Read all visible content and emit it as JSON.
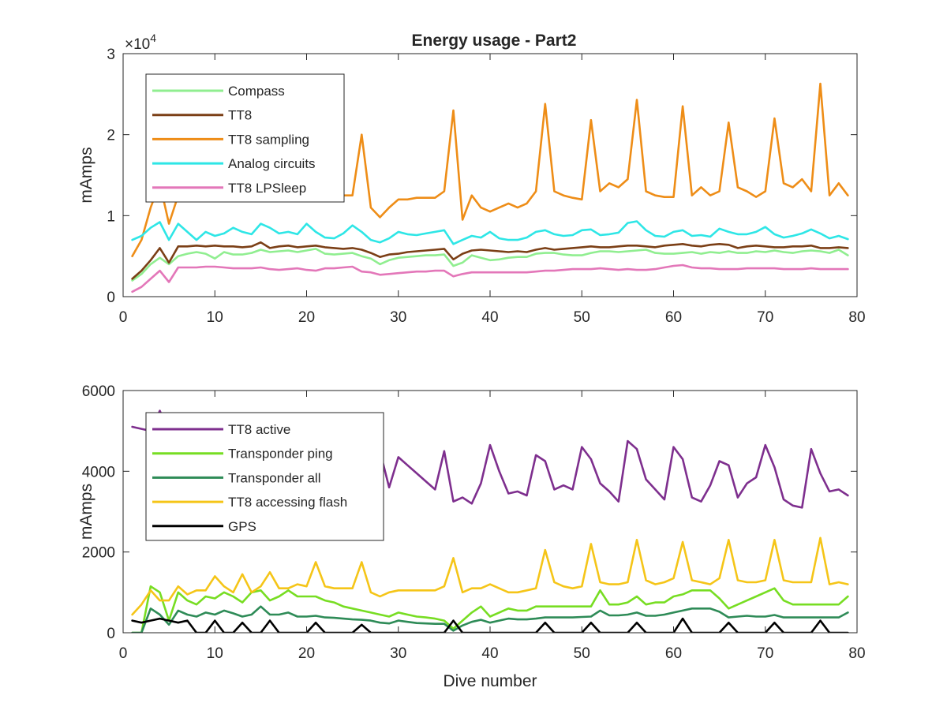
{
  "chart_data": [
    {
      "type": "line",
      "title": "Energy usage - Part2",
      "xlabel": "",
      "ylabel": "mAmps",
      "xlim": [
        0,
        80
      ],
      "ylim": [
        0,
        30000
      ],
      "x_ticks": [
        "0",
        "10",
        "20",
        "30",
        "40",
        "50",
        "60",
        "70",
        "80"
      ],
      "y_ticks": [
        "0",
        "1",
        "2",
        "3"
      ],
      "y_exponent": {
        "base": "×10",
        "power": "4"
      },
      "grid": false,
      "legend": "top-left",
      "x": [
        1,
        2,
        3,
        4,
        5,
        6,
        7,
        8,
        9,
        10,
        11,
        12,
        13,
        14,
        15,
        16,
        17,
        18,
        19,
        20,
        21,
        22,
        23,
        24,
        25,
        26,
        27,
        28,
        29,
        30,
        31,
        32,
        33,
        34,
        35,
        36,
        37,
        38,
        39,
        40,
        41,
        42,
        43,
        44,
        45,
        46,
        47,
        48,
        49,
        50,
        51,
        52,
        53,
        54,
        55,
        56,
        57,
        58,
        59,
        60,
        61,
        62,
        63,
        64,
        65,
        66,
        67,
        68,
        69,
        70,
        71,
        72,
        73,
        74,
        75,
        76,
        77,
        78,
        79
      ],
      "series": [
        {
          "name": "Compass",
          "color": "#90ee90",
          "values": [
            2000,
            2800,
            4000,
            4800,
            4000,
            5000,
            5300,
            5500,
            5300,
            4700,
            5500,
            5200,
            5200,
            5400,
            5800,
            5500,
            5600,
            5700,
            5500,
            5700,
            5900,
            5300,
            5200,
            5300,
            5400,
            5000,
            4700,
            4000,
            4500,
            4800,
            4900,
            5000,
            5100,
            5100,
            5200,
            3800,
            4200,
            5100,
            4800,
            4500,
            4600,
            4800,
            4900,
            4900,
            5300,
            5400,
            5400,
            5200,
            5100,
            5100,
            5400,
            5600,
            5600,
            5500,
            5600,
            5700,
            5800,
            5400,
            5300,
            5300,
            5400,
            5500,
            5300,
            5500,
            5400,
            5600,
            5400,
            5400,
            5600,
            5500,
            5700,
            5500,
            5400,
            5600,
            5700,
            5600,
            5400,
            5800,
            5100
          ]
        },
        {
          "name": "TT8",
          "color": "#7b3f16",
          "values": [
            2200,
            3200,
            4500,
            6000,
            4200,
            6200,
            6200,
            6300,
            6200,
            6300,
            6200,
            6200,
            6100,
            6200,
            6700,
            6000,
            6200,
            6300,
            6100,
            6200,
            6300,
            6100,
            6000,
            5900,
            6000,
            5800,
            5400,
            4900,
            5200,
            5300,
            5500,
            5600,
            5700,
            5800,
            5900,
            4600,
            5300,
            5700,
            5800,
            5700,
            5600,
            5500,
            5600,
            5500,
            5800,
            6000,
            5800,
            5900,
            6000,
            6100,
            6200,
            6100,
            6100,
            6200,
            6300,
            6300,
            6200,
            6100,
            6300,
            6400,
            6500,
            6300,
            6200,
            6400,
            6500,
            6400,
            6000,
            6200,
            6300,
            6200,
            6100,
            6100,
            6200,
            6200,
            6300,
            6000,
            6000,
            6100,
            6000
          ]
        },
        {
          "name": "TT8 sampling",
          "color": "#ee8d17",
          "values": [
            5000,
            7000,
            11000,
            14000,
            9000,
            12500,
            12500,
            12500,
            12500,
            12500,
            12500,
            12500,
            12500,
            12500,
            12500,
            12500,
            12500,
            12500,
            12500,
            12500,
            12500,
            12500,
            12500,
            12500,
            12500,
            20000,
            11000,
            9800,
            11000,
            12000,
            12000,
            12200,
            12200,
            12200,
            13000,
            23000,
            9500,
            12500,
            11000,
            10500,
            11000,
            11500,
            11000,
            11500,
            13000,
            23800,
            13000,
            12500,
            12200,
            12000,
            21800,
            13000,
            14000,
            13500,
            14500,
            24300,
            13000,
            12500,
            12300,
            12300,
            23500,
            12500,
            13500,
            12500,
            13000,
            21500,
            13500,
            13000,
            12300,
            13000,
            22000,
            14000,
            13500,
            14500,
            13000,
            26300,
            12500,
            14000,
            12500
          ]
        },
        {
          "name": "Analog circuits",
          "color": "#2ee6e6",
          "values": [
            7000,
            7500,
            8500,
            9200,
            7000,
            9000,
            8000,
            7000,
            8000,
            7500,
            7800,
            8500,
            8000,
            7700,
            9000,
            8500,
            7800,
            8000,
            7700,
            9000,
            8000,
            7300,
            7200,
            7800,
            8800,
            8000,
            7000,
            6700,
            7200,
            8000,
            7700,
            7600,
            7800,
            8000,
            8200,
            6500,
            7000,
            7500,
            7300,
            8000,
            7200,
            7000,
            7000,
            7300,
            8000,
            8200,
            7700,
            7500,
            7600,
            8200,
            8300,
            7600,
            7700,
            7900,
            9100,
            9300,
            8200,
            7500,
            7400,
            8000,
            8200,
            7500,
            7600,
            7400,
            8400,
            8000,
            7700,
            7700,
            8000,
            8600,
            7700,
            7300,
            7500,
            7800,
            8300,
            7800,
            7200,
            7500,
            7100
          ]
        },
        {
          "name": "TT8 LPSleep",
          "color": "#e377b9",
          "values": [
            600,
            1200,
            2200,
            3200,
            1800,
            3600,
            3600,
            3600,
            3700,
            3700,
            3600,
            3500,
            3500,
            3500,
            3600,
            3400,
            3300,
            3400,
            3500,
            3300,
            3200,
            3500,
            3500,
            3600,
            3700,
            3100,
            3000,
            2700,
            2800,
            2900,
            3000,
            3100,
            3100,
            3200,
            3200,
            2500,
            2800,
            3000,
            3000,
            3000,
            3000,
            3000,
            3000,
            3000,
            3100,
            3200,
            3200,
            3300,
            3400,
            3400,
            3400,
            3500,
            3400,
            3300,
            3400,
            3300,
            3300,
            3400,
            3600,
            3800,
            3900,
            3600,
            3500,
            3500,
            3400,
            3400,
            3400,
            3500,
            3500,
            3500,
            3500,
            3400,
            3400,
            3400,
            3500,
            3400,
            3400,
            3400,
            3400
          ]
        }
      ]
    },
    {
      "type": "line",
      "title": "",
      "xlabel": "Dive number",
      "ylabel": "mAmps",
      "xlim": [
        0,
        80
      ],
      "ylim": [
        0,
        6000
      ],
      "x_ticks": [
        "0",
        "10",
        "20",
        "30",
        "40",
        "50",
        "60",
        "70",
        "80"
      ],
      "y_ticks": [
        "0",
        "2000",
        "4000",
        "6000"
      ],
      "grid": false,
      "legend": "top-left",
      "x": [
        1,
        2,
        3,
        4,
        5,
        6,
        7,
        8,
        9,
        10,
        11,
        12,
        13,
        14,
        15,
        16,
        17,
        18,
        19,
        20,
        21,
        22,
        23,
        24,
        25,
        26,
        27,
        28,
        29,
        30,
        31,
        32,
        33,
        34,
        35,
        36,
        37,
        38,
        39,
        40,
        41,
        42,
        43,
        44,
        45,
        46,
        47,
        48,
        49,
        50,
        51,
        52,
        53,
        54,
        55,
        56,
        57,
        58,
        59,
        60,
        61,
        62,
        63,
        64,
        65,
        66,
        67,
        68,
        69,
        70,
        71,
        72,
        73,
        74,
        75,
        76,
        77,
        78,
        79
      ],
      "series": [
        {
          "name": "TT8 active",
          "color": "#7e2f8e",
          "values": [
            5100,
            5050,
            5000,
            5500,
            5000,
            5000,
            5000,
            5000,
            5000,
            5000,
            5000,
            5000,
            5000,
            5000,
            5000,
            5000,
            5000,
            5000,
            5000,
            5000,
            5000,
            5000,
            5000,
            5000,
            5000,
            5000,
            5000,
            4500,
            3600,
            4350,
            4150,
            3950,
            3750,
            3550,
            4500,
            3250,
            3350,
            3200,
            3700,
            4650,
            4000,
            3450,
            3500,
            3400,
            4400,
            4250,
            3550,
            3650,
            3550,
            4600,
            4300,
            3700,
            3500,
            3250,
            4750,
            4550,
            3800,
            3550,
            3300,
            4600,
            4300,
            3350,
            3250,
            3650,
            4250,
            4150,
            3350,
            3700,
            3850,
            4650,
            4100,
            3300,
            3150,
            3100,
            4550,
            3950,
            3500,
            3550,
            3400
          ]
        },
        {
          "name": "Transponder ping",
          "color": "#77dd22",
          "values": [
            0,
            0,
            1150,
            1000,
            300,
            1000,
            800,
            700,
            900,
            850,
            1000,
            900,
            750,
            1000,
            1050,
            800,
            900,
            1050,
            900,
            900,
            900,
            800,
            750,
            650,
            600,
            550,
            500,
            450,
            400,
            500,
            450,
            400,
            380,
            350,
            300,
            100,
            300,
            500,
            650,
            400,
            500,
            600,
            550,
            550,
            650,
            650,
            650,
            650,
            650,
            650,
            650,
            1050,
            700,
            700,
            750,
            900,
            700,
            750,
            750,
            900,
            950,
            1050,
            1050,
            1050,
            850,
            600,
            700,
            800,
            900,
            1000,
            1100,
            800,
            700,
            700,
            700,
            700,
            700,
            700,
            900
          ]
        },
        {
          "name": "Transponder all",
          "color": "#2e8b57",
          "values": [
            0,
            0,
            600,
            450,
            200,
            550,
            450,
            400,
            500,
            450,
            550,
            480,
            400,
            450,
            650,
            450,
            450,
            500,
            400,
            400,
            420,
            380,
            370,
            350,
            330,
            320,
            300,
            250,
            230,
            300,
            270,
            240,
            230,
            220,
            220,
            50,
            180,
            270,
            320,
            250,
            300,
            350,
            330,
            330,
            350,
            380,
            380,
            380,
            380,
            390,
            400,
            550,
            430,
            430,
            450,
            500,
            420,
            420,
            450,
            500,
            550,
            600,
            600,
            600,
            520,
            380,
            400,
            420,
            400,
            400,
            440,
            380,
            380,
            380,
            380,
            380,
            380,
            380,
            500
          ]
        },
        {
          "name": "TT8 accessing flash",
          "color": "#f5c518",
          "values": [
            450,
            700,
            1050,
            800,
            800,
            1150,
            950,
            1050,
            1050,
            1400,
            1150,
            1000,
            1450,
            1000,
            1150,
            1500,
            1100,
            1100,
            1200,
            1150,
            1750,
            1150,
            1100,
            1100,
            1100,
            1750,
            1000,
            900,
            1000,
            1050,
            1050,
            1050,
            1050,
            1050,
            1150,
            1850,
            1000,
            1100,
            1100,
            1200,
            1100,
            1000,
            1000,
            1050,
            1100,
            2050,
            1250,
            1150,
            1100,
            1150,
            2200,
            1250,
            1200,
            1200,
            1250,
            2300,
            1300,
            1200,
            1250,
            1350,
            2250,
            1300,
            1250,
            1200,
            1350,
            2300,
            1300,
            1250,
            1250,
            1300,
            2300,
            1300,
            1250,
            1250,
            1250,
            2350,
            1200,
            1250,
            1200
          ]
        },
        {
          "name": "GPS",
          "color": "#000000",
          "values": [
            300,
            250,
            300,
            350,
            300,
            250,
            300,
            0,
            0,
            300,
            0,
            0,
            250,
            0,
            0,
            300,
            0,
            0,
            0,
            0,
            250,
            0,
            0,
            0,
            0,
            200,
            0,
            0,
            0,
            0,
            0,
            0,
            0,
            0,
            0,
            300,
            0,
            0,
            0,
            0,
            0,
            0,
            0,
            0,
            0,
            250,
            0,
            0,
            0,
            0,
            250,
            0,
            0,
            0,
            0,
            250,
            0,
            0,
            0,
            0,
            350,
            0,
            0,
            0,
            0,
            250,
            0,
            0,
            0,
            0,
            250,
            0,
            0,
            0,
            0,
            300,
            0,
            0,
            0
          ]
        }
      ]
    }
  ]
}
